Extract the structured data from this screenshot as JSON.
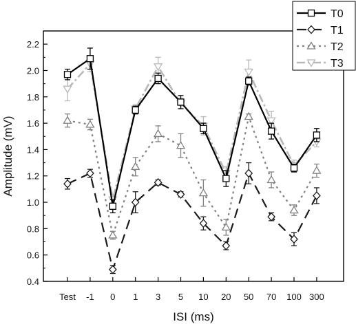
{
  "chart_data": {
    "type": "line",
    "xlabel": "ISI (ms)",
    "ylabel": "Amplitude (mV)",
    "categories": [
      "Test",
      "-1",
      "0",
      "1",
      "3",
      "5",
      "10",
      "20",
      "50",
      "70",
      "100",
      "300"
    ],
    "ylim": [
      0.4,
      2.3
    ],
    "yticks": [
      "0.4",
      "0.6",
      "0.8",
      "1.0",
      "1.2",
      "1.4",
      "1.6",
      "1.8",
      "2.0",
      "2.2"
    ],
    "grid": false,
    "legend_position": "top-right",
    "series": [
      {
        "name": "T0",
        "color": "#000000",
        "marker": "square",
        "dash": "solid",
        "values": [
          1.97,
          2.09,
          0.97,
          1.7,
          1.94,
          1.76,
          1.56,
          1.18,
          1.92,
          1.54,
          1.26,
          1.51
        ],
        "errors": [
          0.04,
          0.08,
          0.05,
          0.03,
          0.04,
          0.05,
          0.04,
          0.06,
          0.03,
          0.06,
          0.03,
          0.05
        ]
      },
      {
        "name": "T1",
        "color": "#1a1a1a",
        "marker": "diamond",
        "dash": "long-dash",
        "values": [
          1.14,
          1.22,
          0.49,
          1.0,
          1.15,
          1.06,
          0.84,
          0.67,
          1.22,
          0.89,
          0.72,
          1.05
        ],
        "errors": [
          0.04,
          0.03,
          0.03,
          0.08,
          0.02,
          0.02,
          0.05,
          0.03,
          0.08,
          0.03,
          0.05,
          0.06
        ]
      },
      {
        "name": "T2",
        "color": "#808080",
        "marker": "triangle-up",
        "dash": "dot",
        "values": [
          1.62,
          1.59,
          0.75,
          1.27,
          1.52,
          1.43,
          1.07,
          0.81,
          1.65,
          1.17,
          0.94,
          1.24
        ],
        "errors": [
          0.05,
          0.04,
          0.03,
          0.07,
          0.06,
          0.09,
          0.1,
          0.06,
          0.02,
          0.06,
          0.04,
          0.05
        ]
      },
      {
        "name": "T3",
        "color": "#b8b8b8",
        "marker": "triangle-down",
        "dash": "dash-dot",
        "values": [
          1.86,
          2.05,
          1.02,
          1.71,
          2.03,
          1.75,
          1.58,
          1.22,
          1.99,
          1.62,
          1.28,
          1.46
        ],
        "errors": [
          0.09,
          0.06,
          0.04,
          0.03,
          0.07,
          0.04,
          0.07,
          0.05,
          0.09,
          0.07,
          0.04,
          0.04
        ]
      }
    ]
  }
}
